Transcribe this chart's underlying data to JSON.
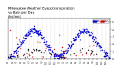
{
  "title": "Milwaukee Weather Evapotranspiration\nvs Rain per Day\n(Inches)",
  "title_fontsize": 3.5,
  "legend_labels": [
    "ETo",
    "Rain"
  ],
  "legend_colors": [
    "#0000cc",
    "#cc0000"
  ],
  "bg_color": "#ffffff",
  "grid_color": "#aaaaaa",
  "n_points": 730,
  "ylim": [
    0,
    0.55
  ],
  "yticks": [
    0.0,
    0.1,
    0.2,
    0.3,
    0.4,
    0.5
  ],
  "yticklabels": [
    ".0",
    ".1",
    ".2",
    ".3",
    ".4",
    ".5"
  ],
  "month_boundaries": [
    0,
    31,
    59,
    90,
    120,
    151,
    181,
    212,
    243,
    273,
    304,
    334,
    365,
    396,
    424,
    455,
    485,
    516,
    546,
    577,
    608,
    638,
    669,
    699,
    730
  ],
  "x_tick_labels": [
    "1/1",
    "2/1",
    "3/1",
    "4/1",
    "5/1",
    "6/1",
    "7/1",
    "8/1",
    "9/1",
    "10/1",
    "11/1",
    "12/1",
    "1/1",
    "2/1",
    "3/1",
    "4/1",
    "5/1",
    "6/1",
    "7/1",
    "8/1",
    "9/1",
    "10/1",
    "11/1",
    "12/1",
    "1/1"
  ],
  "dot_size": 1.5,
  "seed": 12345
}
